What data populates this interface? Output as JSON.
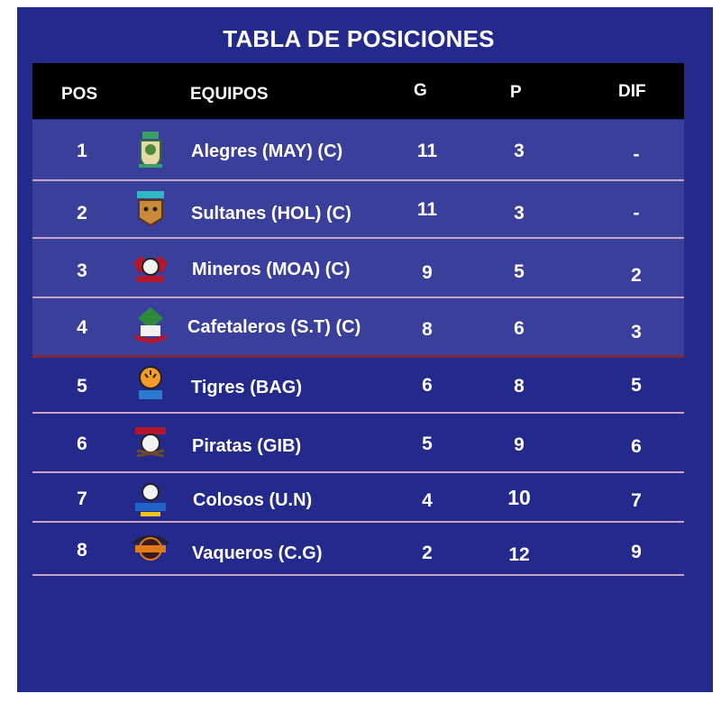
{
  "title": "TABLA DE POSICIONES",
  "headers": {
    "pos": "POS",
    "team": "EQUIPOS",
    "g": "G",
    "p": "P",
    "dif": "DIF"
  },
  "rows": [
    {
      "pos": "1",
      "team": "Alegres (MAY)  (C)",
      "g": "11",
      "p": "3",
      "dif": "-",
      "logo_icon": "alegres-logo-icon"
    },
    {
      "pos": "2",
      "team": "Sultanes (HOL) (C)",
      "g": "11",
      "p": "3",
      "dif": "-",
      "logo_icon": "sultanes-logo-icon"
    },
    {
      "pos": "3",
      "team": "Mineros (MOA)  (C)",
      "g": "9",
      "p": "5",
      "dif": "2",
      "logo_icon": "mineros-logo-icon"
    },
    {
      "pos": "4",
      "team": "Cafetaleros (S.T) (C)",
      "g": "8",
      "p": "6",
      "dif": "3",
      "logo_icon": "cafetaleros-logo-icon"
    },
    {
      "pos": "5",
      "team": "Tigres (BAG)",
      "g": "6",
      "p": "8",
      "dif": "5",
      "logo_icon": "tigres-logo-icon"
    },
    {
      "pos": "6",
      "team": "Piratas (GIB)",
      "g": "5",
      "p": "9",
      "dif": "6",
      "logo_icon": "piratas-logo-icon"
    },
    {
      "pos": "7",
      "team": "Colosos (U.N)",
      "g": "4",
      "p": "10",
      "dif": "7",
      "logo_icon": "colosos-logo-icon"
    },
    {
      "pos": "8",
      "team": "Vaqueros (C.G)",
      "g": "2",
      "p": "12",
      "dif": "9",
      "logo_icon": "vaqueros-logo-icon"
    }
  ],
  "colors": {
    "panel": "#24298c",
    "header": "#000000",
    "highlight_rows": "#3a3f9c",
    "separator": "#c8a2c3",
    "qualify_line": "#7a2a3a"
  }
}
